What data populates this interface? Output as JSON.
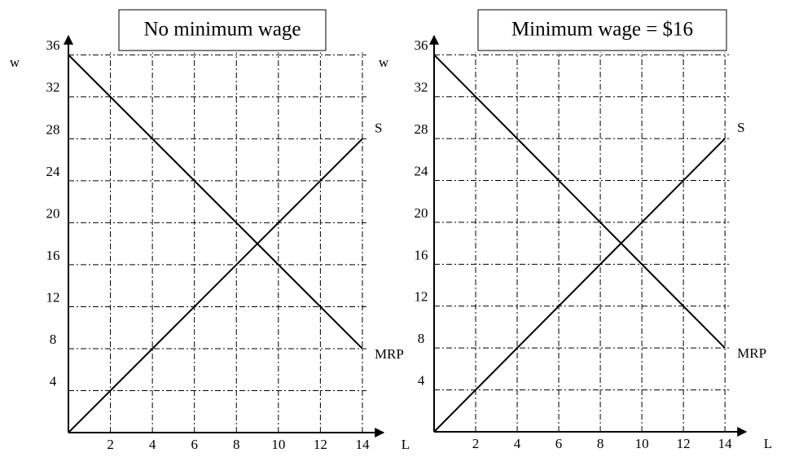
{
  "chart_data": [
    {
      "type": "line",
      "title": "No minimum wage",
      "x_label": "L",
      "y_label": "w",
      "x": [
        0,
        14
      ],
      "series": [
        {
          "name": "S",
          "color": "#000000",
          "values": [
            0,
            28
          ]
        },
        {
          "name": "MRP",
          "color": "#000000",
          "values": [
            36,
            8
          ]
        }
      ],
      "xlim": [
        0,
        14.7
      ],
      "ylim": [
        0,
        37.5
      ],
      "xticks": [
        2,
        4,
        6,
        8,
        10,
        12,
        14
      ],
      "yticks": [
        4,
        8,
        12,
        16,
        20,
        24,
        28,
        32,
        36
      ],
      "grid": true
    },
    {
      "type": "line",
      "title": "Minimum wage = $16",
      "x_label": "L",
      "y_label": "w",
      "x": [
        0,
        14
      ],
      "series": [
        {
          "name": "S",
          "color": "#000000",
          "values": [
            0,
            28
          ]
        },
        {
          "name": "MRP",
          "color": "#000000",
          "values": [
            36,
            8
          ]
        }
      ],
      "xlim": [
        0,
        14.7
      ],
      "ylim": [
        0,
        37.5
      ],
      "xticks": [
        2,
        4,
        6,
        8,
        10,
        12,
        14
      ],
      "yticks": [
        4,
        8,
        12,
        16,
        20,
        24,
        28,
        32,
        36
      ],
      "grid": true
    }
  ]
}
